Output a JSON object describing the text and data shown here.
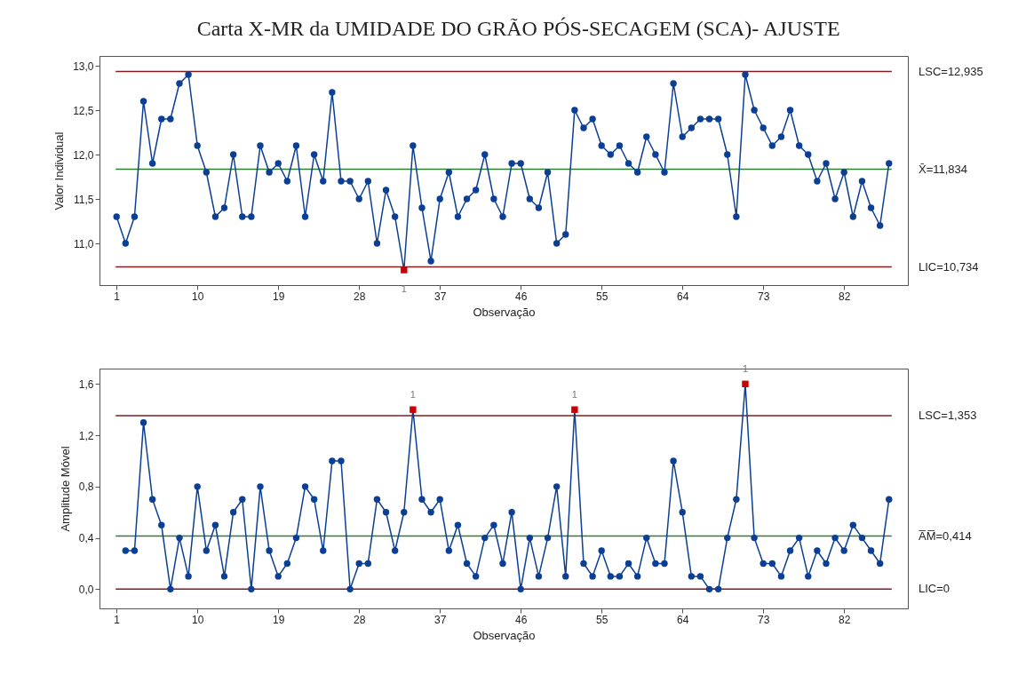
{
  "chart_data": [
    {
      "type": "line",
      "title": "Carta X-MR da UMIDADE DO GRÃO PÓS-SECAGEM  (SCA)- AJUSTE",
      "xlabel": "Observação",
      "ylabel": "Valor Individual",
      "marker": "circle",
      "grid": false,
      "xlim": [
        -0.9,
        89.1
      ],
      "xticks": [
        1,
        10,
        19,
        28,
        37,
        46,
        55,
        64,
        73,
        82
      ],
      "ylim": [
        10.53,
        13.11
      ],
      "yticks": [
        {
          "value": 11,
          "label": "11,0"
        },
        {
          "value": 11.5,
          "label": "11,5"
        },
        {
          "value": 12,
          "label": "12,0"
        },
        {
          "value": 12.5,
          "label": "12,5"
        },
        {
          "value": 13,
          "label": "13,0"
        }
      ],
      "x": [
        1,
        2,
        3,
        4,
        5,
        6,
        7,
        8,
        9,
        10,
        11,
        12,
        13,
        14,
        15,
        16,
        17,
        18,
        19,
        20,
        21,
        22,
        23,
        24,
        25,
        26,
        27,
        28,
        29,
        30,
        31,
        32,
        33,
        34,
        35,
        36,
        37,
        38,
        39,
        40,
        41,
        42,
        43,
        44,
        45,
        46,
        47,
        48,
        49,
        50,
        51,
        52,
        53,
        54,
        55,
        56,
        57,
        58,
        59,
        60,
        61,
        62,
        63,
        64,
        65,
        66,
        67,
        68,
        69,
        70,
        71,
        72,
        73,
        74,
        75,
        76,
        77,
        78,
        79,
        80,
        81,
        82,
        83,
        84,
        85,
        86,
        87
      ],
      "series": [
        {
          "color": "#0b3f95",
          "values": [
            11.3,
            11.0,
            11.3,
            12.6,
            11.9,
            12.4,
            12.4,
            12.8,
            12.9,
            12.1,
            11.8,
            11.3,
            11.4,
            12.0,
            11.3,
            11.3,
            12.1,
            11.8,
            11.9,
            11.7,
            12.1,
            11.3,
            12.0,
            11.7,
            12.7,
            11.7,
            11.7,
            11.5,
            11.7,
            11.0,
            11.6,
            11.3,
            10.7,
            12.1,
            11.4,
            10.8,
            11.5,
            11.8,
            11.3,
            11.5,
            11.6,
            12.0,
            11.5,
            11.3,
            11.9,
            11.9,
            11.5,
            11.4,
            11.8,
            11.0,
            11.1,
            12.5,
            12.3,
            12.4,
            12.1,
            12.0,
            12.1,
            11.9,
            11.8,
            12.2,
            12.0,
            11.8,
            12.8,
            12.2,
            12.3,
            12.4,
            12.4,
            12.4,
            12.0,
            11.3,
            12.9,
            12.5,
            12.3,
            12.1,
            12.2,
            12.5,
            12.1,
            12.0,
            11.7,
            11.9,
            11.5,
            11.8,
            11.3,
            11.7,
            11.4,
            11.2,
            11.9
          ],
          "colors": [
            "#0b3f95",
            "#0b3f95",
            "#0b3f95",
            "#0b3f95",
            "#0b3f95",
            "#0b3f95",
            "#0b3f95",
            "#0b3f95",
            "#0b3f95",
            "#0b3f95",
            "#0b3f95",
            "#0b3f95",
            "#0b3f95",
            "#0b3f95",
            "#0b3f95",
            "#0b3f95",
            "#0b3f95",
            "#0b3f95",
            "#0b3f95",
            "#0b3f95",
            "#0b3f95",
            "#0b3f95",
            "#0b3f95",
            "#0b3f95",
            "#0b3f95",
            "#0b3f95",
            "#0b3f95",
            "#0b3f95",
            "#0b3f95",
            "#0b3f95",
            "#0b3f95",
            "#0b3f95",
            "#cc0000",
            "#0b3f95",
            "#0b3f95",
            "#0b3f95",
            "#0b3f95",
            "#0b3f95",
            "#0b3f95",
            "#0b3f95",
            "#0b3f95",
            "#0b3f95",
            "#0b3f95",
            "#0b3f95",
            "#0b3f95",
            "#0b3f95",
            "#0b3f95",
            "#0b3f95",
            "#0b3f95",
            "#0b3f95",
            "#0b3f95",
            "#0b3f95",
            "#0b3f95",
            "#0b3f95",
            "#0b3f95",
            "#0b3f95",
            "#0b3f95",
            "#0b3f95",
            "#0b3f95",
            "#0b3f95",
            "#0b3f95",
            "#0b3f95",
            "#0b3f95",
            "#0b3f95",
            "#0b3f95",
            "#0b3f95",
            "#0b3f95",
            "#0b3f95",
            "#0b3f95",
            "#0b3f95",
            "#0b3f95",
            "#0b3f95",
            "#0b3f95",
            "#0b3f95",
            "#0b3f95",
            "#0b3f95",
            "#0b3f95",
            "#0b3f95",
            "#0b3f95",
            "#0b3f95",
            "#0b3f95",
            "#0b3f95",
            "#0b3f95",
            "#0b3f95",
            "#0b3f95",
            "#0b3f95",
            "#0b3f95"
          ]
        }
      ],
      "ref_lines": [
        {
          "axis": "y",
          "value": 12.935,
          "label": "LSC=12,935",
          "color": "#7a1f1f"
        },
        {
          "axis": "y",
          "value": 11.834,
          "label": "X̄=11,834",
          "color": "#2e7d32"
        },
        {
          "axis": "y",
          "value": 10.734,
          "label": "LIC=10,734",
          "color": "#7a1f1f"
        }
      ],
      "annotations": [
        {
          "text": "1",
          "x": 33,
          "y": 10.7
        }
      ]
    },
    {
      "type": "line",
      "xlabel": "Observação",
      "ylabel": "Amplitude Móvel",
      "marker": "circle",
      "grid": false,
      "xlim": [
        -0.9,
        89.1
      ],
      "xticks": [
        1,
        10,
        19,
        28,
        37,
        46,
        55,
        64,
        73,
        82
      ],
      "ylim": [
        -0.15,
        1.72
      ],
      "yticks": [
        {
          "value": 0,
          "label": "0,0"
        },
        {
          "value": 0.4,
          "label": "0,4"
        },
        {
          "value": 0.8,
          "label": "0,8"
        },
        {
          "value": 1.2,
          "label": "1,2"
        },
        {
          "value": 1.6,
          "label": "1,6"
        }
      ],
      "x": [
        2,
        3,
        4,
        5,
        6,
        7,
        8,
        9,
        10,
        11,
        12,
        13,
        14,
        15,
        16,
        17,
        18,
        19,
        20,
        21,
        22,
        23,
        24,
        25,
        26,
        27,
        28,
        29,
        30,
        31,
        32,
        33,
        34,
        35,
        36,
        37,
        38,
        39,
        40,
        41,
        42,
        43,
        44,
        45,
        46,
        47,
        48,
        49,
        50,
        51,
        52,
        53,
        54,
        55,
        56,
        57,
        58,
        59,
        60,
        61,
        62,
        63,
        64,
        65,
        66,
        67,
        68,
        69,
        70,
        71,
        72,
        73,
        74,
        75,
        76,
        77,
        78,
        79,
        80,
        81,
        82,
        83,
        84,
        85,
        86,
        87
      ],
      "series": [
        {
          "color": "#0b3f95",
          "values": [
            0.3,
            0.3,
            1.3,
            0.7,
            0.5,
            0,
            0.4,
            0.1,
            0.8,
            0.3,
            0.5,
            0.1,
            0.6,
            0.7,
            0,
            0.8,
            0.3,
            0.1,
            0.2,
            0.4,
            0.8,
            0.7,
            0.3,
            1.0,
            1.0,
            0,
            0.2,
            0.2,
            0.7,
            0.6,
            0.3,
            0.6,
            1.4,
            0.7,
            0.6,
            0.7,
            0.3,
            0.5,
            0.2,
            0.1,
            0.4,
            0.5,
            0.2,
            0.6,
            0,
            0.4,
            0.1,
            0.4,
            0.8,
            0.1,
            1.4,
            0.2,
            0.1,
            0.3,
            0.1,
            0.1,
            0.2,
            0.1,
            0.4,
            0.2,
            0.2,
            1.0,
            0.6,
            0.1,
            0.1,
            0,
            0,
            0.4,
            0.7,
            1.6,
            0.4,
            0.2,
            0.2,
            0.1,
            0.3,
            0.4,
            0.1,
            0.3,
            0.2,
            0.4,
            0.3,
            0.5,
            0.4,
            0.3,
            0.2,
            0.7
          ],
          "colors": [
            "#0b3f95",
            "#0b3f95",
            "#0b3f95",
            "#0b3f95",
            "#0b3f95",
            "#0b3f95",
            "#0b3f95",
            "#0b3f95",
            "#0b3f95",
            "#0b3f95",
            "#0b3f95",
            "#0b3f95",
            "#0b3f95",
            "#0b3f95",
            "#0b3f95",
            "#0b3f95",
            "#0b3f95",
            "#0b3f95",
            "#0b3f95",
            "#0b3f95",
            "#0b3f95",
            "#0b3f95",
            "#0b3f95",
            "#0b3f95",
            "#0b3f95",
            "#0b3f95",
            "#0b3f95",
            "#0b3f95",
            "#0b3f95",
            "#0b3f95",
            "#0b3f95",
            "#0b3f95",
            "#cc0000",
            "#0b3f95",
            "#0b3f95",
            "#0b3f95",
            "#0b3f95",
            "#0b3f95",
            "#0b3f95",
            "#0b3f95",
            "#0b3f95",
            "#0b3f95",
            "#0b3f95",
            "#0b3f95",
            "#0b3f95",
            "#0b3f95",
            "#0b3f95",
            "#0b3f95",
            "#0b3f95",
            "#0b3f95",
            "#cc0000",
            "#0b3f95",
            "#0b3f95",
            "#0b3f95",
            "#0b3f95",
            "#0b3f95",
            "#0b3f95",
            "#0b3f95",
            "#0b3f95",
            "#0b3f95",
            "#0b3f95",
            "#0b3f95",
            "#0b3f95",
            "#0b3f95",
            "#0b3f95",
            "#0b3f95",
            "#0b3f95",
            "#0b3f95",
            "#0b3f95",
            "#cc0000",
            "#0b3f95",
            "#0b3f95",
            "#0b3f95",
            "#0b3f95",
            "#0b3f95",
            "#0b3f95",
            "#0b3f95",
            "#0b3f95",
            "#0b3f95",
            "#0b3f95",
            "#0b3f95",
            "#0b3f95",
            "#0b3f95",
            "#0b3f95",
            "#0b3f95",
            "#0b3f95"
          ]
        }
      ],
      "ref_lines": [
        {
          "axis": "y",
          "value": 1.353,
          "label": "LSC=1,353",
          "color": "#7a1f1f"
        },
        {
          "axis": "y",
          "value": 0.414,
          "label": "A̅M̅=0,414",
          "color": "#2e7d32"
        },
        {
          "axis": "y",
          "value": 0,
          "label": "LIC=0",
          "color": "#7a1f1f"
        }
      ],
      "annotations": [
        {
          "text": "1",
          "x": 34,
          "y": 1.4
        },
        {
          "text": "1",
          "x": 52,
          "y": 1.4
        },
        {
          "text": "1",
          "x": 71,
          "y": 1.6
        }
      ]
    }
  ]
}
